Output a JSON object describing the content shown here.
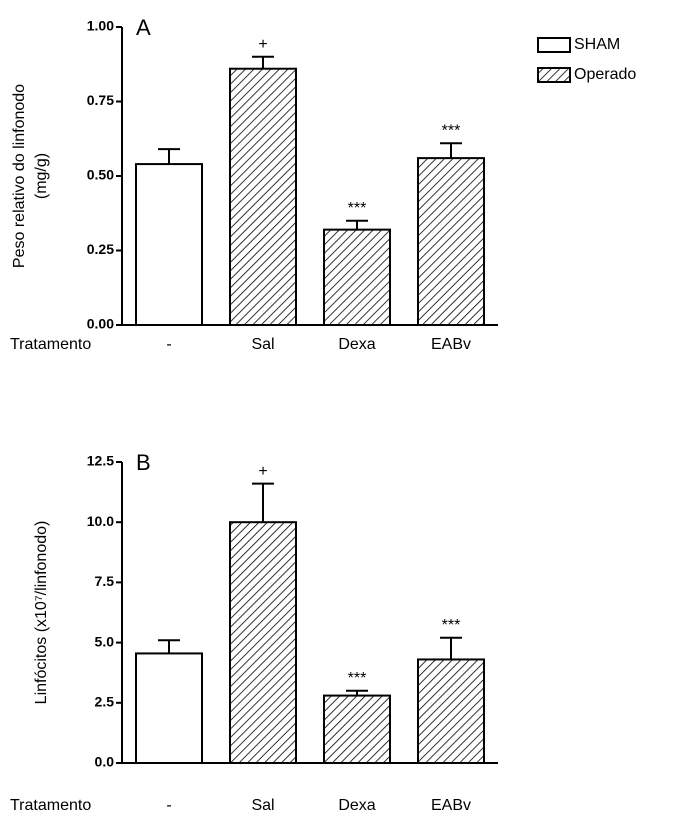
{
  "chart_data": [
    {
      "type": "bar",
      "panel": "A",
      "ylabel": [
        "Peso relativo do linfonodo",
        "(mg/g)"
      ],
      "xlabel": "Tratamento",
      "categories": [
        "-",
        "Sal",
        "Dexa",
        "EABv"
      ],
      "series": [
        {
          "name": "SHAM",
          "color": "white",
          "values": [
            0.54,
            null,
            null,
            null
          ],
          "errors": [
            0.05,
            null,
            null,
            null
          ],
          "annotations": [
            null,
            null,
            null,
            null
          ]
        },
        {
          "name": "Operado",
          "color": "hatch",
          "values": [
            null,
            0.86,
            0.32,
            0.56
          ],
          "errors": [
            null,
            0.04,
            0.03,
            0.05
          ],
          "annotations": [
            null,
            "+",
            "***",
            "***"
          ]
        }
      ],
      "ylim": [
        0,
        1
      ],
      "yticks": [
        {
          "value": 0,
          "label": "0.00"
        },
        0.25,
        {
          "value": 0.5,
          "label": "0.50"
        },
        0.75,
        {
          "value": 1,
          "label": "1.00"
        }
      ],
      "legend": "top-right"
    },
    {
      "type": "bar",
      "panel": "B",
      "ylabel": [
        "Linfócitos (x10⁷/linfonodo)"
      ],
      "xlabel": "Tratamento",
      "categories": [
        "-",
        "Sal",
        "Dexa",
        "EABv"
      ],
      "series": [
        {
          "name": "SHAM",
          "color": "white",
          "values": [
            4.55,
            null,
            null,
            null
          ],
          "errors": [
            0.55,
            null,
            null,
            null
          ],
          "annotations": [
            null,
            null,
            null,
            null
          ]
        },
        {
          "name": "Operado",
          "color": "hatch",
          "values": [
            null,
            10.0,
            2.8,
            4.3
          ],
          "errors": [
            null,
            1.6,
            0.2,
            0.9
          ],
          "annotations": [
            null,
            "+",
            "***",
            "***"
          ]
        }
      ],
      "ylim": [
        0,
        12.5
      ],
      "yticks": [
        {
          "value": 0,
          "label": "0.0"
        },
        2.5,
        {
          "value": 5,
          "label": "5.0"
        },
        7.5,
        {
          "value": 10,
          "label": "10.0"
        },
        12.5
      ]
    }
  ]
}
